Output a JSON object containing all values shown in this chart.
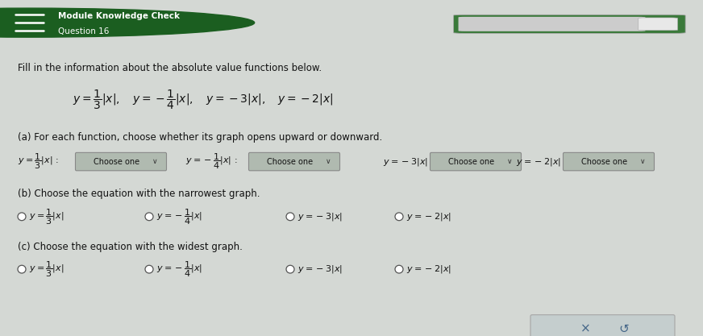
{
  "header_bg_color": "#2e7d32",
  "header_text_color": "#ffffff",
  "header_title": "Module Knowledge Check",
  "header_subtitle": "Question 16",
  "body_bg_color": "#d4d8d4",
  "body_text_color": "#111111",
  "intro_text": "Fill in the information about the absolute value functions below.",
  "part_a_label": "(a) For each function, choose whether its graph opens upward or downward.",
  "part_b_label": "(b) Choose the equation with the narrowest graph.",
  "part_c_label": "(c) Choose the equation with the widest graph.",
  "dropdown_bg": "#b0bab0",
  "dropdown_border": "#888888",
  "button_bg": "#c5cece",
  "button_border": "#aaaaaa",
  "figsize": [
    8.72,
    4.17
  ],
  "dpi": 100
}
